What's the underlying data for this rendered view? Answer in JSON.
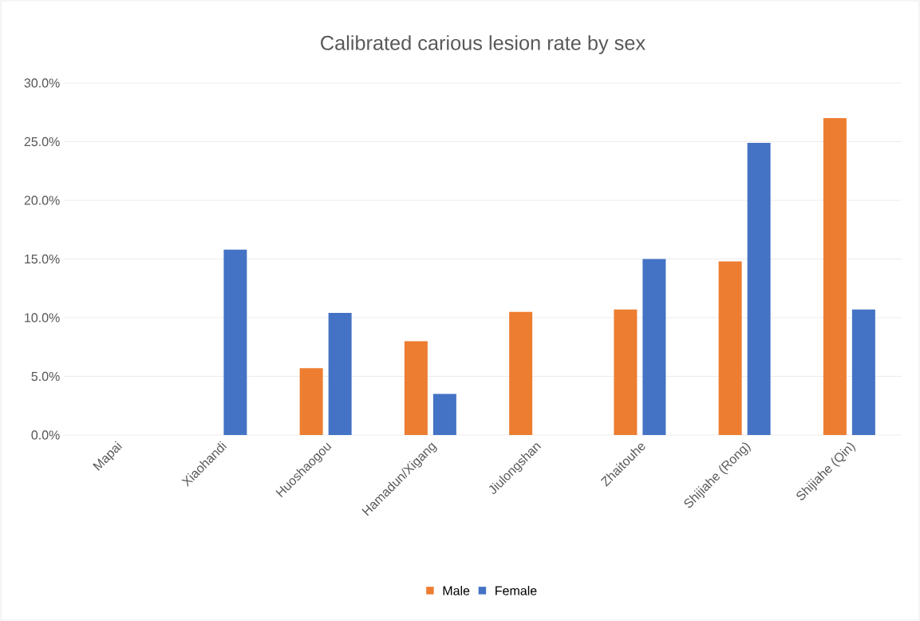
{
  "chart_data": {
    "type": "bar",
    "title": "Calibrated carious lesion rate by sex",
    "categories": [
      "Mapai",
      "Xiaohandi",
      "Huoshaogou",
      "Hamadun/Xigang",
      "Jiulongshan",
      "Zhaitouhe",
      "Shijiahe (Rong)",
      "Shijiahe (Qin)"
    ],
    "series": [
      {
        "name": "Male",
        "color": "#ed7d31",
        "values": [
          null,
          null,
          5.7,
          8.0,
          10.5,
          10.7,
          14.8,
          27.0
        ]
      },
      {
        "name": "Female",
        "color": "#4472c4",
        "values": [
          null,
          15.8,
          10.4,
          3.5,
          null,
          15.0,
          24.9,
          10.7
        ]
      }
    ],
    "ylim": [
      0,
      30
    ],
    "yticks": [
      {
        "value": 0,
        "label": "0.0%"
      },
      {
        "value": 5,
        "label": "5.0%"
      },
      {
        "value": 10,
        "label": "10.0%"
      },
      {
        "value": 15,
        "label": "15.0%"
      },
      {
        "value": 20,
        "label": "20.0%"
      },
      {
        "value": 25,
        "label": "25.0%"
      },
      {
        "value": 30,
        "label": "30.0%"
      }
    ],
    "grid": "y",
    "legend": "bottom"
  }
}
